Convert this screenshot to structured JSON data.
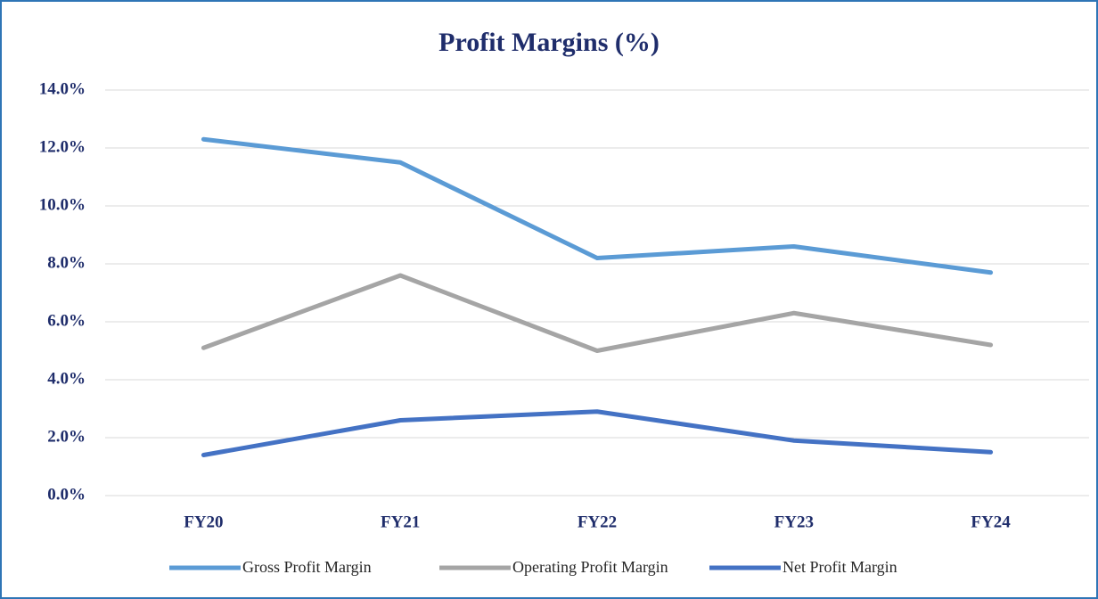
{
  "chart_data": {
    "type": "line",
    "title": "Profit Margins (%)",
    "categories": [
      "FY20",
      "FY21",
      "FY22",
      "FY23",
      "FY24"
    ],
    "series": [
      {
        "name": "Gross Profit Margin",
        "color": "#5b9bd5",
        "values": [
          12.3,
          11.5,
          8.2,
          8.6,
          7.7
        ]
      },
      {
        "name": "Operating Profit Margin",
        "color": "#a5a5a5",
        "values": [
          5.1,
          7.6,
          5.0,
          6.3,
          5.2
        ]
      },
      {
        "name": "Net Profit Margin",
        "color": "#4472c4",
        "values": [
          1.4,
          2.6,
          2.9,
          1.9,
          1.5
        ]
      }
    ],
    "ylim": [
      0,
      14
    ],
    "yticks": [
      {
        "value": 0,
        "label": "0.0%"
      },
      {
        "value": 2,
        "label": "2.0%"
      },
      {
        "value": 4,
        "label": "4.0%"
      },
      {
        "value": 6,
        "label": "6.0%"
      },
      {
        "value": 8,
        "label": "8.0%"
      },
      {
        "value": 10,
        "label": "10.0%"
      },
      {
        "value": 12,
        "label": "12.0%"
      },
      {
        "value": 14,
        "label": "14.0%"
      }
    ],
    "grid": true,
    "legend": "bottom"
  }
}
